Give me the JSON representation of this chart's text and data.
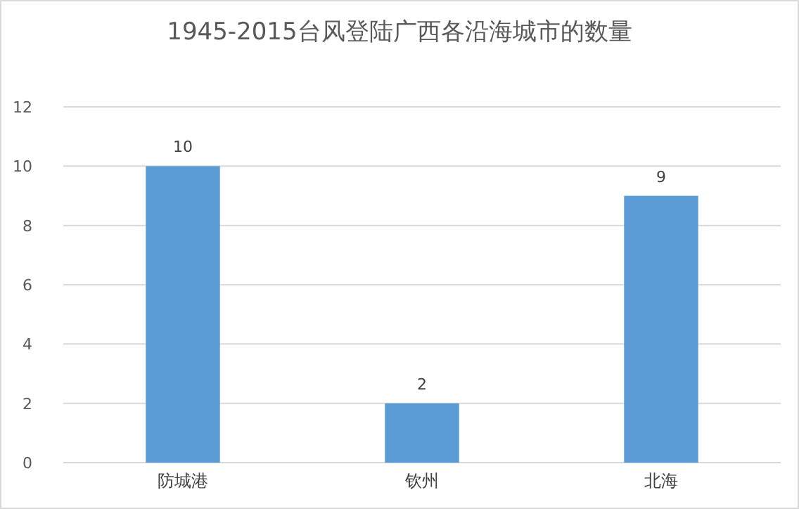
{
  "chart_data": {
    "type": "bar",
    "title": "1945-2015台风登陆广西各沿海城市的数量",
    "categories": [
      "防城港",
      "钦州",
      "北海"
    ],
    "values": [
      10,
      2,
      9
    ],
    "color": "#5b9bd5",
    "ylim": [
      0,
      12
    ],
    "yticks": [
      0,
      2,
      4,
      6,
      8,
      10,
      12
    ],
    "grid": "y",
    "data_labels": true
  }
}
